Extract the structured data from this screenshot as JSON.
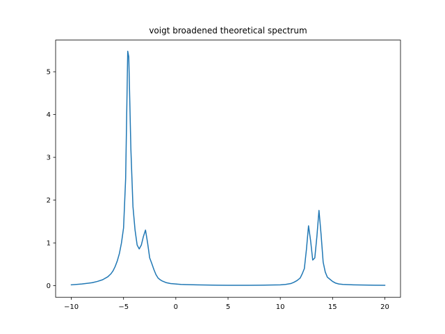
{
  "chart_data": {
    "type": "line",
    "title": "voigt broadened theoretical spectrum",
    "xlabel": "",
    "ylabel": "",
    "xlim": [
      -11.5,
      21.5
    ],
    "ylim": [
      -0.27,
      5.74
    ],
    "xticks": [
      -10,
      -5,
      0,
      5,
      10,
      15,
      20
    ],
    "xtick_labels": [
      "−10",
      "−5",
      "0",
      "5",
      "10",
      "15",
      "20"
    ],
    "yticks": [
      0,
      1,
      2,
      3,
      4,
      5
    ],
    "ytick_labels": [
      "0",
      "1",
      "2",
      "3",
      "4",
      "5"
    ],
    "grid": false,
    "legend": "none",
    "series": [
      {
        "color": "#1f77b4",
        "x": [
          -10,
          -9,
          -8,
          -7.5,
          -7,
          -6.5,
          -6.2,
          -6,
          -5.8,
          -5.6,
          -5.4,
          -5.2,
          -5.0,
          -4.8,
          -4.6,
          -4.5,
          -4.3,
          -4.1,
          -3.9,
          -3.7,
          -3.5,
          -3.3,
          -3.1,
          -2.9,
          -2.7,
          -2.5,
          -2.3,
          -2.1,
          -1.9,
          -1.7,
          -1.5,
          -1.3,
          -1.1,
          -0.9,
          -0.5,
          0,
          0.5,
          1,
          2,
          3,
          4,
          5,
          6,
          7,
          8,
          9,
          10,
          10.5,
          11,
          11.3,
          11.6,
          11.9,
          12.1,
          12.3,
          12.5,
          12.7,
          12.9,
          13.1,
          13.3,
          13.5,
          13.7,
          13.9,
          14.1,
          14.3,
          14.5,
          14.7,
          15.0,
          15.3,
          15.6,
          16,
          17,
          18,
          19,
          20
        ],
        "y": [
          0.02,
          0.04,
          0.07,
          0.1,
          0.14,
          0.21,
          0.28,
          0.35,
          0.45,
          0.58,
          0.75,
          1.0,
          1.35,
          2.5,
          5.48,
          5.35,
          3.2,
          1.85,
          1.3,
          0.95,
          0.86,
          0.95,
          1.15,
          1.3,
          1.0,
          0.65,
          0.52,
          0.38,
          0.26,
          0.18,
          0.14,
          0.11,
          0.09,
          0.07,
          0.05,
          0.04,
          0.03,
          0.025,
          0.02,
          0.015,
          0.012,
          0.01,
          0.01,
          0.01,
          0.012,
          0.015,
          0.02,
          0.03,
          0.05,
          0.08,
          0.12,
          0.18,
          0.28,
          0.4,
          0.85,
          1.4,
          1.05,
          0.6,
          0.65,
          1.15,
          1.76,
          1.2,
          0.55,
          0.32,
          0.2,
          0.16,
          0.1,
          0.06,
          0.04,
          0.03,
          0.02,
          0.015,
          0.012,
          0.01
        ]
      }
    ]
  }
}
